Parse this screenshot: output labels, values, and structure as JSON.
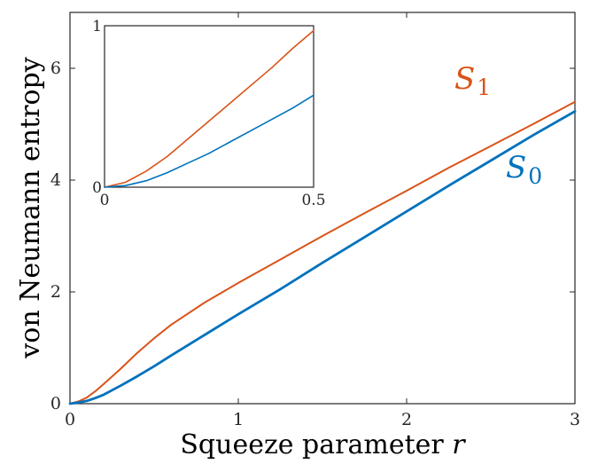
{
  "chart_data": [
    {
      "type": "line",
      "title": "",
      "xlabel": "Squeeze parameter",
      "xlabel_var": "r",
      "ylabel": "von Neumann entropy",
      "xlim": [
        0,
        3
      ],
      "ylim": [
        0,
        7
      ],
      "xticks": [
        "0",
        "1",
        "2",
        "3"
      ],
      "yticks": [
        "0",
        "2",
        "4",
        "6"
      ],
      "grid": false,
      "series": [
        {
          "name": "S",
          "subscript": "1",
          "color": "#d95319",
          "x": [
            0,
            0.05,
            0.1,
            0.15,
            0.2,
            0.3,
            0.4,
            0.5,
            0.6,
            0.8,
            1.0,
            1.25,
            1.5,
            1.75,
            2.0,
            2.25,
            2.5,
            2.75,
            3.0
          ],
          "y": [
            0,
            0.04,
            0.11,
            0.22,
            0.35,
            0.62,
            0.91,
            1.17,
            1.41,
            1.81,
            2.16,
            2.58,
            3.0,
            3.41,
            3.81,
            4.22,
            4.61,
            5.0,
            5.4
          ]
        },
        {
          "name": "S",
          "subscript": "0",
          "color": "#0072bd",
          "x": [
            0,
            0.05,
            0.1,
            0.15,
            0.2,
            0.3,
            0.4,
            0.5,
            0.6,
            0.8,
            1.0,
            1.25,
            1.5,
            1.75,
            2.0,
            2.25,
            2.5,
            2.75,
            3.0
          ],
          "y": [
            0,
            0.02,
            0.05,
            0.1,
            0.16,
            0.32,
            0.49,
            0.67,
            0.86,
            1.23,
            1.6,
            2.05,
            2.52,
            2.98,
            3.44,
            3.9,
            4.35,
            4.8,
            5.23
          ]
        }
      ]
    },
    {
      "type": "line",
      "title": "",
      "xlabel": "",
      "ylabel": "",
      "xlim": [
        0,
        0.5
      ],
      "ylim": [
        0,
        1
      ],
      "xticks": [
        "0",
        "0.5"
      ],
      "yticks": [
        "0",
        "1"
      ],
      "grid": false,
      "series": [
        {
          "color": "#d95319",
          "x": [
            0,
            0.05,
            0.1,
            0.15,
            0.2,
            0.25,
            0.3,
            0.35,
            0.4,
            0.45,
            0.5
          ],
          "y": [
            0,
            0.03,
            0.1,
            0.19,
            0.3,
            0.41,
            0.52,
            0.63,
            0.74,
            0.86,
            0.97
          ]
        },
        {
          "color": "#0072bd",
          "x": [
            0,
            0.05,
            0.1,
            0.15,
            0.2,
            0.25,
            0.3,
            0.35,
            0.4,
            0.45,
            0.5
          ],
          "y": [
            0,
            0.01,
            0.04,
            0.09,
            0.15,
            0.21,
            0.28,
            0.35,
            0.42,
            0.49,
            0.57
          ]
        }
      ]
    }
  ]
}
